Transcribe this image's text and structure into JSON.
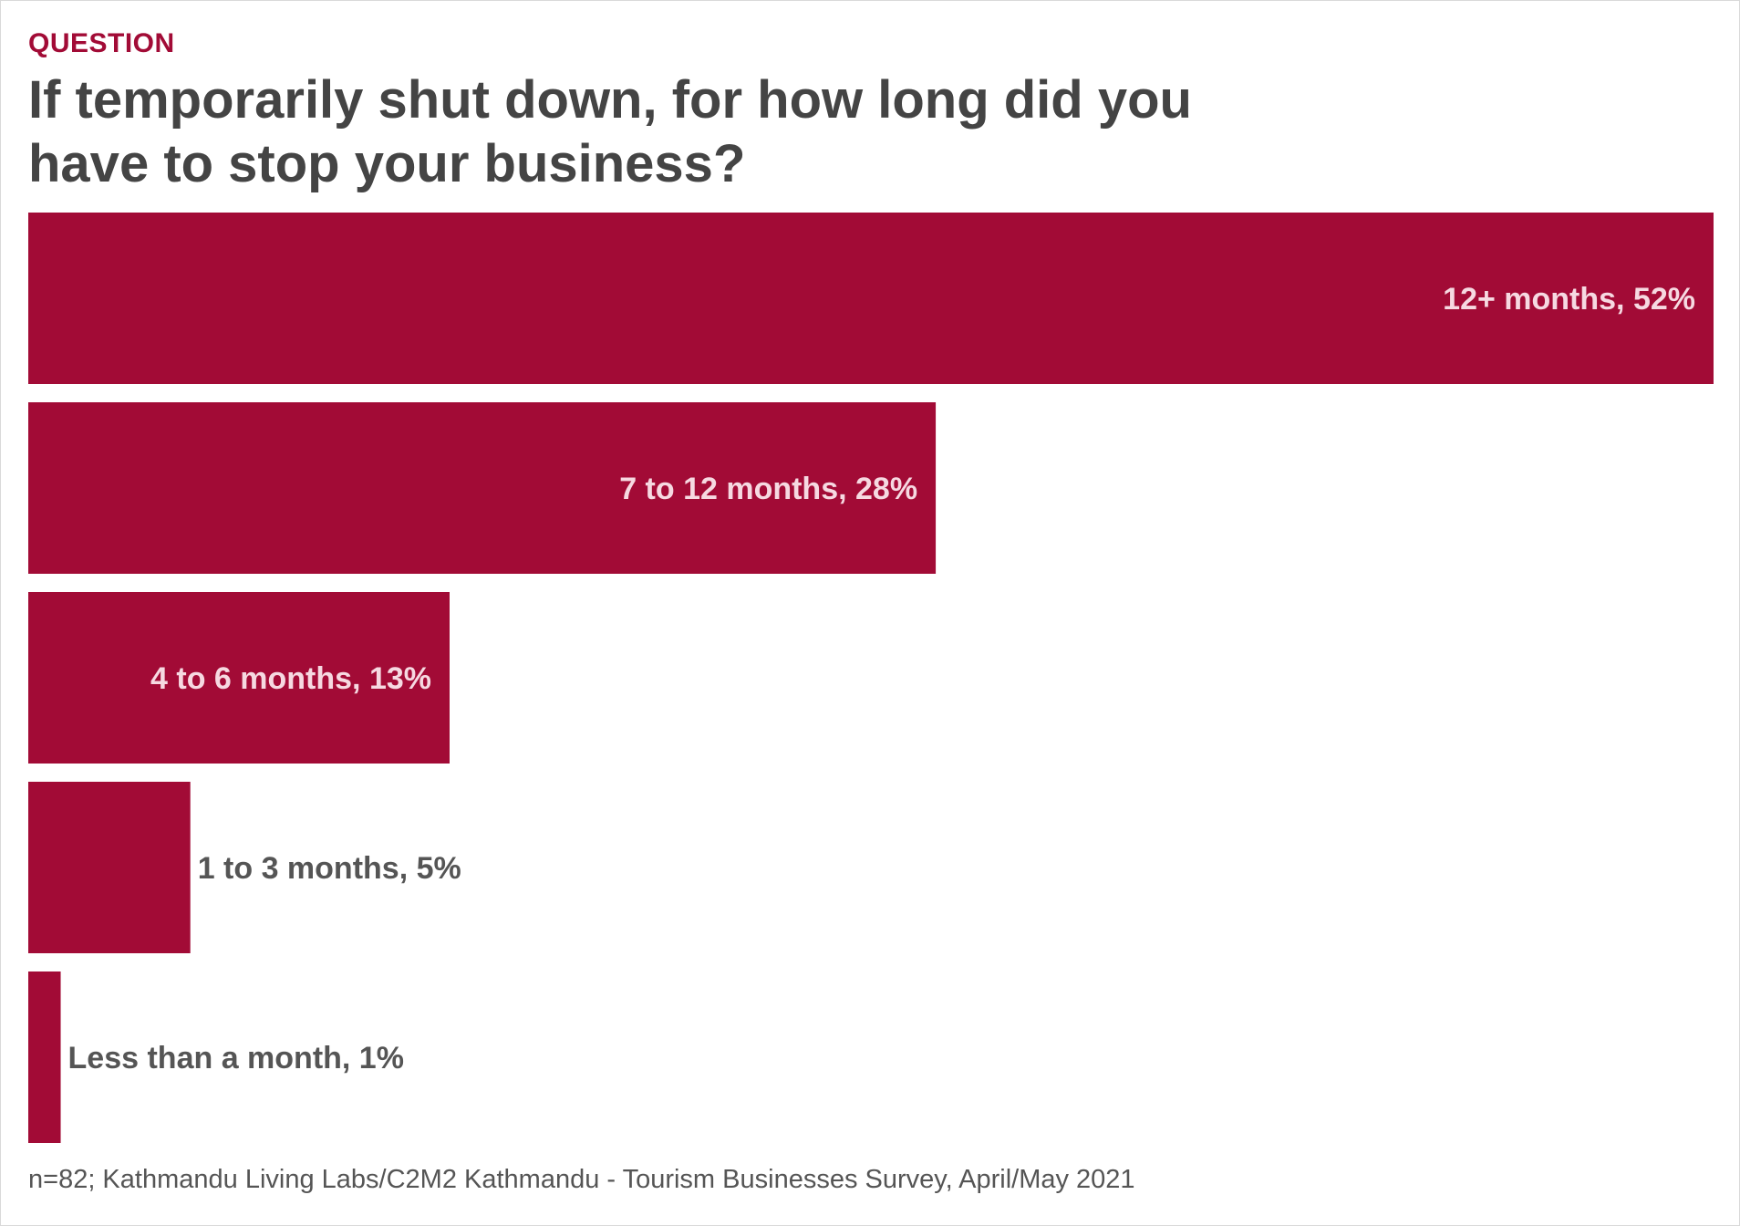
{
  "header": {
    "eyebrow": "QUESTION",
    "title": "If temporarily shut down, for how long did you have to stop your business?"
  },
  "footer": {
    "note": "n=82; Kathmandu Living Labs/C2M2 Kathmandu - Tourism Businesses Survey, April/May 2021"
  },
  "colors": {
    "bar": "#a20b36",
    "label_inside": "#f6d9e1",
    "label_outside": "#555555"
  },
  "chart_data": {
    "type": "bar",
    "orientation": "horizontal",
    "categories": [
      "12+ months",
      "7 to 12 months",
      "4 to 6 months",
      "1 to 3 months",
      "Less than a month"
    ],
    "values": [
      52,
      28,
      13,
      5,
      1
    ],
    "labels": [
      "12+ months, 52%",
      "7 to 12 months, 28%",
      "4 to 6 months, 13%",
      "1 to 3 months, 5%",
      "Less than a month, 1%"
    ],
    "unit": "%",
    "title": "If temporarily shut down, for how long did you have to stop your business?",
    "xlim": [
      0,
      52
    ],
    "grid": false,
    "legend": "none"
  }
}
